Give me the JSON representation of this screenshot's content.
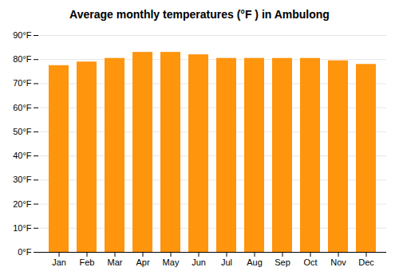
{
  "chart_data": {
    "type": "bar",
    "title": "Average monthly temperatures (°F ) in Ambulong",
    "categories": [
      "Jan",
      "Feb",
      "Mar",
      "Apr",
      "May",
      "Jun",
      "Jul",
      "Aug",
      "Sep",
      "Oct",
      "Nov",
      "Dec"
    ],
    "values": [
      77.5,
      79.0,
      80.5,
      83.0,
      83.0,
      82.0,
      80.5,
      80.5,
      80.5,
      80.5,
      79.5,
      78.0
    ],
    "color": "#ff940d",
    "ylim": [
      0,
      90
    ],
    "yticks": [
      {
        "value": 0,
        "label": "0°F"
      },
      {
        "value": 10,
        "label": "10°F"
      },
      {
        "value": 20,
        "label": "20°F"
      },
      {
        "value": 30,
        "label": "30°F"
      },
      {
        "value": 40,
        "label": "40°F"
      },
      {
        "value": 50,
        "label": "50°F"
      },
      {
        "value": 60,
        "label": "60°F"
      },
      {
        "value": 70,
        "label": "70°F"
      },
      {
        "value": 80,
        "label": "80°F"
      },
      {
        "value": 90,
        "label": "90°F"
      }
    ],
    "grid": true
  }
}
